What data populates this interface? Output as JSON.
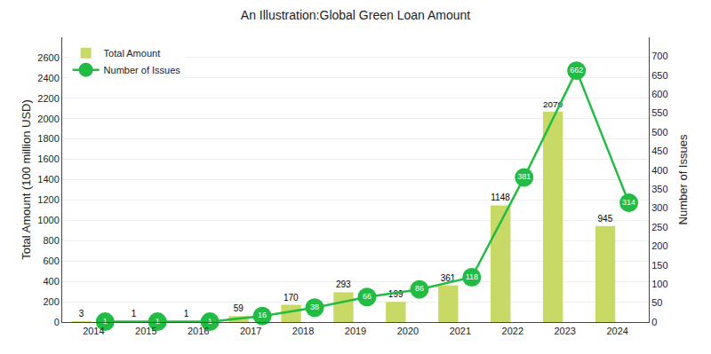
{
  "chart_data": {
    "type": "bar",
    "title": "An Illustration:Global Green Loan Amount",
    "categories": [
      "2014",
      "2015",
      "2016",
      "2017",
      "2018",
      "2019",
      "2020",
      "2021",
      "2022",
      "2023",
      "2024"
    ],
    "ylabel": "Total Amount (100 million USD)",
    "y2label": "Number of Issues",
    "series": [
      {
        "name": "Total Amount",
        "type": "bar",
        "color": "#c8d966",
        "values": [
          3,
          1,
          1,
          59,
          170,
          293,
          199,
          361,
          1148,
          2070,
          945
        ]
      },
      {
        "name": "Number of Issues",
        "type": "line",
        "axis": "y2",
        "color": "#22bb44",
        "marker": "circle",
        "values": [
          1,
          1,
          1,
          16,
          38,
          66,
          86,
          118,
          381,
          662,
          314
        ]
      }
    ],
    "ylim": [
      0,
      2800
    ],
    "yticks": [
      0,
      200,
      400,
      600,
      800,
      1000,
      1200,
      1400,
      1600,
      1800,
      2000,
      2200,
      2400,
      2600
    ],
    "y2lim": [
      0,
      750
    ],
    "y2ticks": [
      0,
      50,
      100,
      150,
      200,
      250,
      300,
      350,
      400,
      450,
      500,
      550,
      600,
      650,
      700
    ],
    "grid": true,
    "legend": "upper left",
    "data_labels": true
  }
}
